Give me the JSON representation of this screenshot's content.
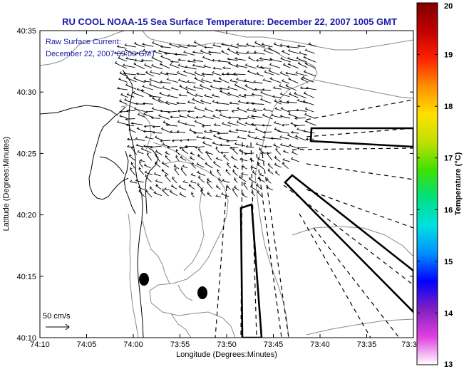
{
  "title": "RU COOL  NOAA-15  Sea Surface Temperature:  December 22, 2007 1005 GMT",
  "annotation": {
    "line1": "Raw Surface Current:",
    "line2": "December 22, 2007 09:00 GMT"
  },
  "scale_label": "50 cm/s",
  "x_axis": {
    "label": "Longitude (Degrees:Minutes)",
    "ticks": [
      "74:10",
      "74:05",
      "74:00",
      "73:55",
      "73:50",
      "73:45",
      "73:40",
      "73:35",
      "73:3"
    ]
  },
  "y_axis": {
    "label": "Latitude (Degrees:Minutes)",
    "ticks": [
      "40:35",
      "40:30",
      "40:25",
      "40:20",
      "40:15",
      "40:10"
    ]
  },
  "colorbar": {
    "label": "Temperature (°C)",
    "ticks": [
      "20",
      "19",
      "18",
      "17",
      "16",
      "15",
      "14",
      "13"
    ],
    "stops": [
      "#ffffff",
      "#e040e0",
      "#8020c0",
      "#0000ff",
      "#0090ff",
      "#00e0e0",
      "#00e080",
      "#40e000",
      "#c0e000",
      "#ffe000",
      "#ff9000",
      "#ff2000",
      "#c00000",
      "#800000"
    ]
  },
  "colors": {
    "title": "#1a1aa6",
    "contour": "#8a8a8a",
    "coast": "#000000"
  }
}
